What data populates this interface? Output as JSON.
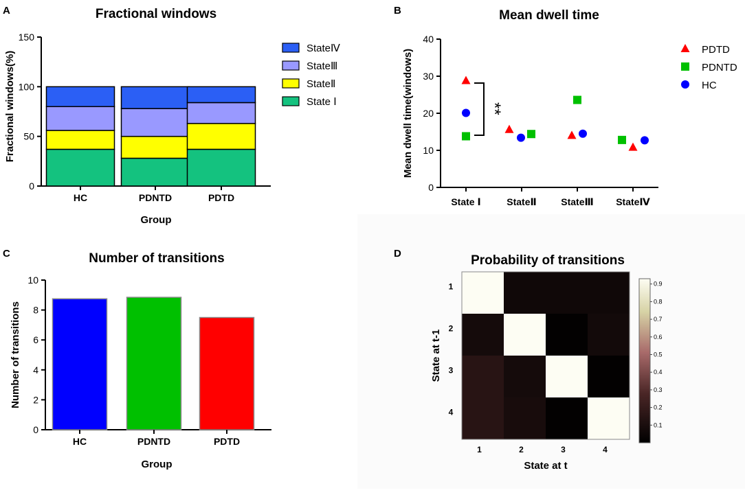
{
  "panels": {
    "A": "A",
    "B": "B",
    "C": "C",
    "D": "D"
  },
  "chart_data": [
    {
      "type": "bar",
      "stacked": true,
      "title": "Fractional windows",
      "xlabel": "Group",
      "ylabel": "Fractional windows(%)",
      "categories": [
        "HC",
        "PDNTD",
        "PDTD"
      ],
      "ylim": [
        0,
        150
      ],
      "yticks": [
        "0",
        "50",
        "100",
        "150"
      ],
      "series": [
        {
          "name": "State Ⅰ",
          "color": "#14c27f",
          "values": [
            37,
            28,
            37
          ]
        },
        {
          "name": "StateⅡ",
          "color": "#ffff00",
          "values": [
            19,
            22,
            26
          ]
        },
        {
          "name": "StateⅢ",
          "color": "#9999ff",
          "values": [
            24,
            28,
            21
          ]
        },
        {
          "name": "StateⅣ",
          "color": "#2b5ff5",
          "values": [
            20,
            22,
            16
          ]
        }
      ],
      "legend_order": [
        "StateⅣ",
        "StateⅢ",
        "StateⅡ",
        "State Ⅰ"
      ]
    },
    {
      "type": "scatter",
      "title": "Mean dwell time",
      "ylabel": "Mean dwell time(windows)",
      "categories": [
        "State Ⅰ",
        "StateⅡ",
        "StateⅢ",
        "StateⅣ"
      ],
      "ylim": [
        0,
        40
      ],
      "yticks": [
        "0",
        "10",
        "20",
        "30",
        "40"
      ],
      "series": [
        {
          "name": "PDTD",
          "color": "#ff0000",
          "marker": "triangle",
          "values": [
            28.8,
            15.6,
            14.0,
            10.8
          ]
        },
        {
          "name": "PDNTD",
          "color": "#00c000",
          "marker": "square",
          "values": [
            13.8,
            14.4,
            23.6,
            12.8
          ]
        },
        {
          "name": "HC",
          "color": "#0000ff",
          "marker": "circle",
          "values": [
            20.1,
            13.4,
            14.5,
            12.7
          ]
        }
      ],
      "annotation": "**"
    },
    {
      "type": "bar",
      "title": "Number of transitions",
      "xlabel": "Group",
      "ylabel": "Number of transitions",
      "categories": [
        "HC",
        "PDNTD",
        "PDTD"
      ],
      "ylim": [
        0,
        10
      ],
      "yticks": [
        "0",
        "2",
        "4",
        "6",
        "8",
        "10"
      ],
      "values": [
        8.75,
        8.85,
        7.5
      ],
      "colors": [
        "#0000ff",
        "#00c000",
        "#ff0000"
      ]
    },
    {
      "type": "heatmap",
      "title": "Probability of transitions",
      "xlabel": "State at t",
      "ylabel": "State at t-1",
      "x_categories": [
        "1",
        "2",
        "3",
        "4"
      ],
      "y_categories": [
        "1",
        "2",
        "3",
        "4"
      ],
      "matrix": [
        [
          0.93,
          0.06,
          0.06,
          0.06
        ],
        [
          0.08,
          0.93,
          0.01,
          0.07
        ],
        [
          0.15,
          0.08,
          0.93,
          0.01
        ],
        [
          0.15,
          0.09,
          0.01,
          0.93
        ]
      ],
      "colorbar_ticks": [
        "0.1",
        "0.2",
        "0.3",
        "0.4",
        "0.5",
        "0.6",
        "0.7",
        "0.8",
        "0.9"
      ],
      "colorbar_range": [
        0.0,
        0.93
      ]
    }
  ]
}
